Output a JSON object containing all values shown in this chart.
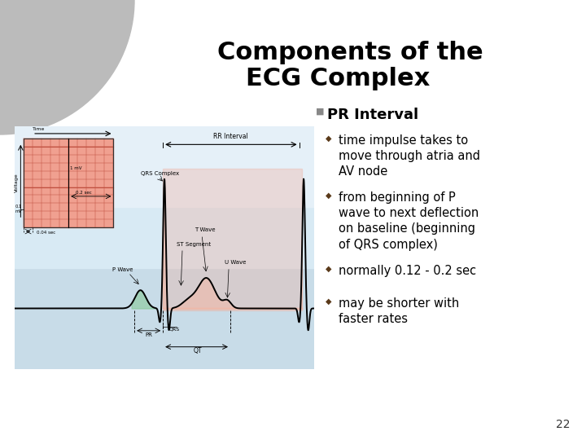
{
  "title_line1": "Components of the",
  "title_line2": "ECG Complex",
  "title_fontsize": 22,
  "title_color": "#000000",
  "background_color": "#ffffff",
  "slide_number": "22",
  "bullet_header": "PR Interval",
  "bullet_header_fontsize": 13,
  "sub_bullets": [
    "time impulse takes to\nmove through atria and\nAV node",
    "from beginning of P\nwave to next deflection\non baseline (beginning\nof QRS complex)",
    "normally 0.12 - 0.2 sec",
    "may be shorter with\nfaster rates"
  ],
  "sub_bullet_fontsize": 10.5,
  "bullet_color": "#000000",
  "diamond_color": "#5a3a1a",
  "square_bullet_color": "#777777",
  "gray_circle_color": "#bbbbbb",
  "ecg_bg_top": "#b8d8e8",
  "ecg_bg_bottom": "#d0e8f0",
  "grid_color": "#e8a090",
  "grid_line_color": "#d07060",
  "pink_shade": "#f0b8a8",
  "green_shade": "#90c8a0"
}
